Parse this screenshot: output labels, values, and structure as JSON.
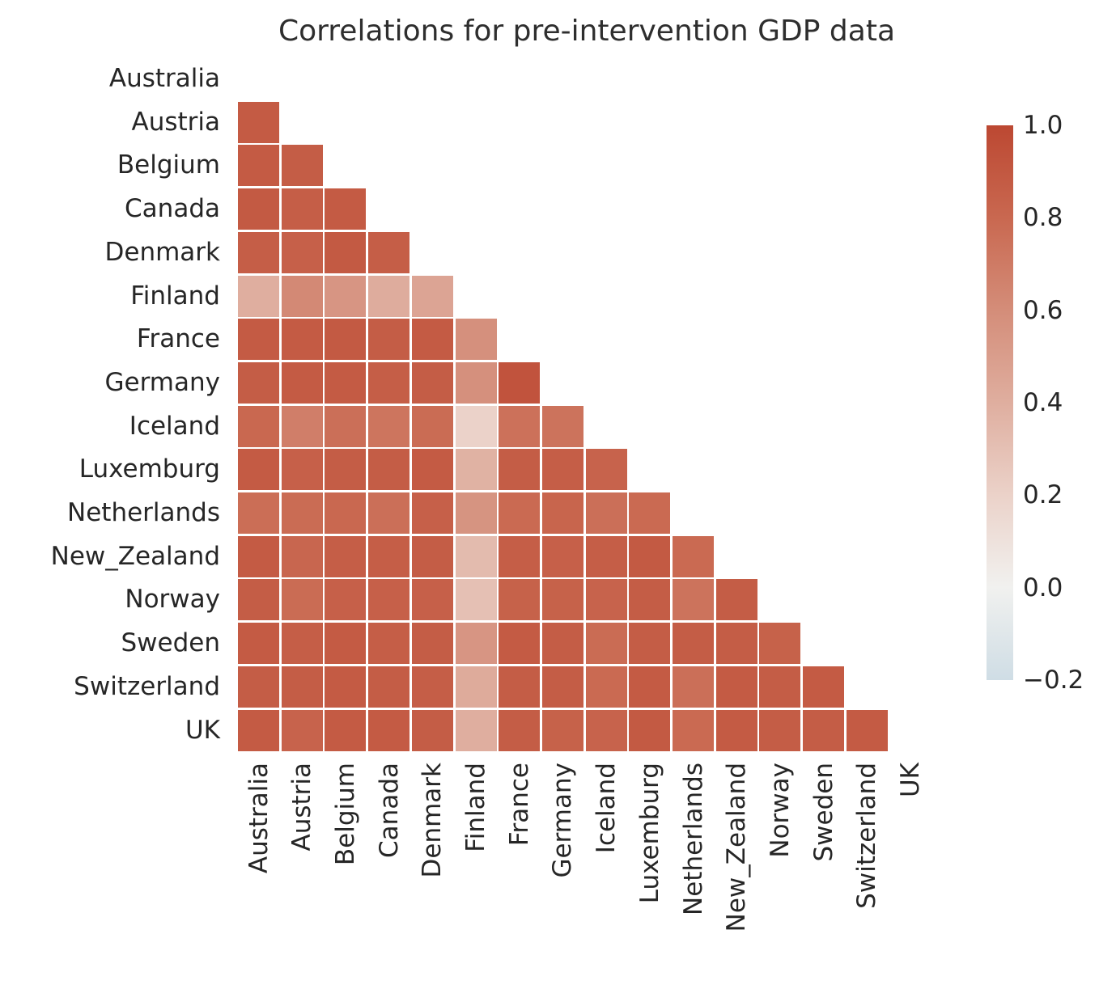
{
  "title": "Correlations for pre-intervention GDP data",
  "chart_data": {
    "type": "heatmap",
    "title": "Correlations for pre-intervention GDP data",
    "mask": "upper triangle and diagonal are hidden (blank)",
    "categories": [
      "Australia",
      "Austria",
      "Belgium",
      "Canada",
      "Denmark",
      "Finland",
      "France",
      "Germany",
      "Iceland",
      "Luxemburg",
      "Netherlands",
      "New_Zealand",
      "Norway",
      "Sweden",
      "Switzerland",
      "UK"
    ],
    "rows": [
      {
        "name": "Australia",
        "values": []
      },
      {
        "name": "Austria",
        "values": [
          0.88
        ]
      },
      {
        "name": "Belgium",
        "values": [
          0.88,
          0.87
        ]
      },
      {
        "name": "Canada",
        "values": [
          0.89,
          0.86,
          0.88
        ]
      },
      {
        "name": "Denmark",
        "values": [
          0.86,
          0.85,
          0.89,
          0.86
        ]
      },
      {
        "name": "Finland",
        "values": [
          0.4,
          0.62,
          0.55,
          0.41,
          0.46
        ]
      },
      {
        "name": "France",
        "values": [
          0.88,
          0.88,
          0.89,
          0.87,
          0.88,
          0.58
        ]
      },
      {
        "name": "Germany",
        "values": [
          0.87,
          0.88,
          0.88,
          0.86,
          0.87,
          0.58,
          0.93
        ]
      },
      {
        "name": "Iceland",
        "values": [
          0.8,
          0.68,
          0.76,
          0.73,
          0.78,
          0.2,
          0.75,
          0.74
        ]
      },
      {
        "name": "Luxemburg",
        "values": [
          0.88,
          0.85,
          0.87,
          0.87,
          0.88,
          0.38,
          0.87,
          0.86,
          0.83
        ]
      },
      {
        "name": "Netherlands",
        "values": [
          0.77,
          0.78,
          0.8,
          0.76,
          0.85,
          0.56,
          0.79,
          0.82,
          0.76,
          0.79
        ]
      },
      {
        "name": "New_Zealand",
        "values": [
          0.88,
          0.81,
          0.86,
          0.86,
          0.87,
          0.33,
          0.86,
          0.85,
          0.86,
          0.89,
          0.79
        ]
      },
      {
        "name": "Norway",
        "values": [
          0.87,
          0.78,
          0.85,
          0.85,
          0.85,
          0.3,
          0.84,
          0.84,
          0.83,
          0.87,
          0.74,
          0.87
        ]
      },
      {
        "name": "Sweden",
        "values": [
          0.88,
          0.86,
          0.88,
          0.86,
          0.87,
          0.55,
          0.88,
          0.87,
          0.78,
          0.87,
          0.87,
          0.87,
          0.84
        ]
      },
      {
        "name": "Switzerland",
        "values": [
          0.87,
          0.87,
          0.88,
          0.87,
          0.86,
          0.42,
          0.87,
          0.87,
          0.79,
          0.88,
          0.76,
          0.88,
          0.87,
          0.88
        ]
      },
      {
        "name": "UK",
        "values": [
          0.88,
          0.83,
          0.88,
          0.88,
          0.87,
          0.4,
          0.87,
          0.84,
          0.83,
          0.89,
          0.79,
          0.88,
          0.87,
          0.87,
          0.88
        ]
      }
    ],
    "colorbar": {
      "ticks": [
        "1.0",
        "0.8",
        "0.6",
        "0.4",
        "0.2",
        "0.0",
        "−0.2"
      ],
      "tick_values": [
        1.0,
        0.8,
        0.6,
        0.4,
        0.2,
        0.0,
        -0.2
      ],
      "vmin": -0.2,
      "vmax": 1.0,
      "position": "right"
    },
    "colormap_anchors": [
      {
        "v": -0.2,
        "color": "#cfdde5"
      },
      {
        "v": 0.0,
        "color": "#f1f1ef"
      },
      {
        "v": 0.2,
        "color": "#ebd2c9"
      },
      {
        "v": 0.4,
        "color": "#dfae9f"
      },
      {
        "v": 0.6,
        "color": "#d48d79"
      },
      {
        "v": 0.8,
        "color": "#c96850"
      },
      {
        "v": 1.0,
        "color": "#bc4832"
      }
    ],
    "grid": "white gaps between cells",
    "legend_position": "none"
  },
  "colors": {
    "background": "#ffffff",
    "text": "#262626",
    "high_corr": "#bc4832",
    "low_corr": "#cfdde5"
  }
}
